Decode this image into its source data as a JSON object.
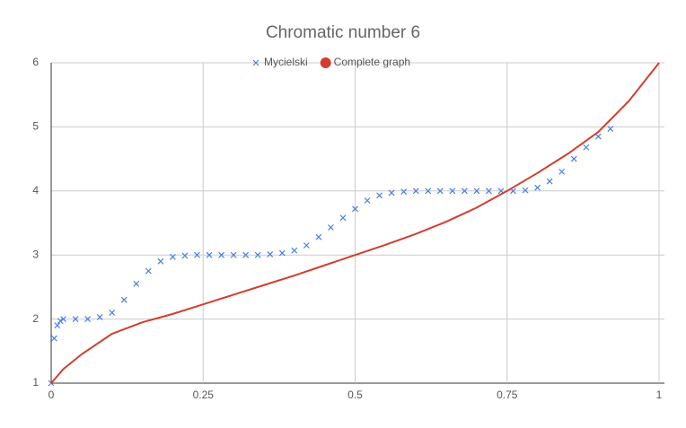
{
  "chart_data": {
    "type": "scatter",
    "title": "Chromatic number 6",
    "legend": "top",
    "xlim": [
      0,
      1
    ],
    "xticks": [
      0,
      0.25,
      0.5,
      0.75,
      1
    ],
    "ylim": [
      1,
      6
    ],
    "yticks": [
      1,
      2,
      3,
      4,
      5,
      6
    ],
    "grid": true,
    "series": [
      {
        "name": "Mycielski",
        "color": "#4a7fe0",
        "marker": "x",
        "x": [
          0,
          0.005,
          0.01,
          0.015,
          0.02,
          0.04,
          0.06,
          0.08,
          0.1,
          0.12,
          0.14,
          0.16,
          0.18,
          0.2,
          0.22,
          0.24,
          0.26,
          0.28,
          0.3,
          0.32,
          0.34,
          0.36,
          0.38,
          0.4,
          0.42,
          0.44,
          0.46,
          0.48,
          0.5,
          0.52,
          0.54,
          0.56,
          0.58,
          0.6,
          0.62,
          0.64,
          0.66,
          0.68,
          0.7,
          0.72,
          0.74,
          0.76,
          0.78,
          0.8,
          0.82,
          0.84,
          0.86,
          0.88,
          0.9,
          0.92
        ],
        "values": [
          1,
          1.7,
          1.9,
          1.97,
          2,
          2,
          2,
          2.03,
          2.1,
          2.3,
          2.55,
          2.75,
          2.9,
          2.97,
          2.99,
          3,
          3,
          3,
          3,
          3,
          3,
          3.01,
          3.03,
          3.07,
          3.15,
          3.28,
          3.43,
          3.58,
          3.72,
          3.85,
          3.93,
          3.97,
          3.99,
          4,
          4,
          4,
          4,
          4,
          4,
          4,
          4,
          4,
          4.01,
          4.05,
          4.15,
          4.3,
          4.5,
          4.68,
          4.85,
          4.97
        ]
      },
      {
        "name": "Complete graph",
        "color": "#d33d2f",
        "marker": "line",
        "x": [
          0,
          0.02,
          0.05,
          0.1,
          0.15,
          0.2,
          0.25,
          0.3,
          0.35,
          0.4,
          0.45,
          0.5,
          0.55,
          0.6,
          0.65,
          0.7,
          0.75,
          0.8,
          0.85,
          0.9,
          0.95,
          1
        ],
        "values": [
          1,
          1.22,
          1.45,
          1.77,
          1.95,
          2.08,
          2.23,
          2.38,
          2.53,
          2.68,
          2.84,
          3,
          3.16,
          3.33,
          3.52,
          3.74,
          4,
          4.28,
          4.58,
          4.92,
          5.4,
          6
        ]
      }
    ]
  }
}
